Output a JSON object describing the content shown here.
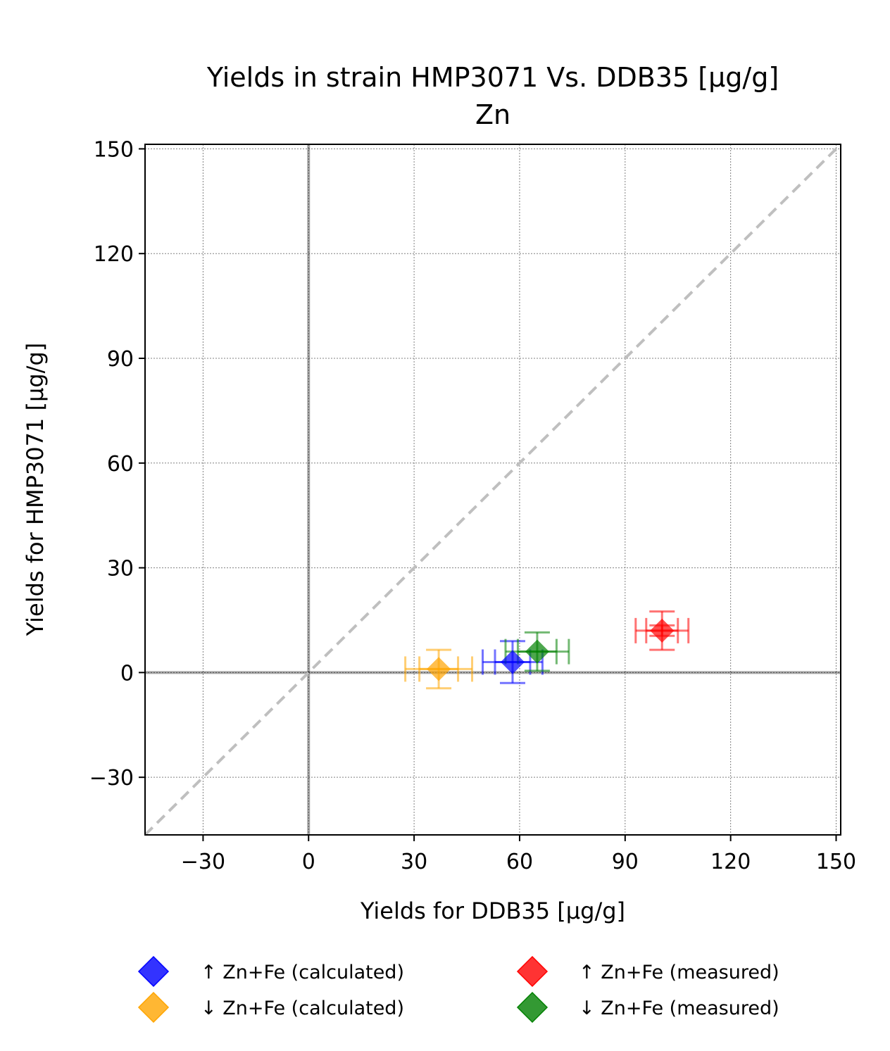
{
  "chart_data": {
    "type": "scatter",
    "title": "Yields in strain HMP3071 Vs. DDB35 [µg/g]",
    "subtitle": "Zn",
    "xlabel": "Yields for DDB35 [µg/g]",
    "ylabel": "Yields for HMP3071 [µg/g]",
    "xlim": [
      -46.5,
      151.3
    ],
    "ylim": [
      -46.5,
      151.3
    ],
    "xticks": [
      -30,
      0,
      30,
      60,
      90,
      120,
      150
    ],
    "yticks": [
      -30,
      0,
      30,
      60,
      90,
      120,
      150
    ],
    "xtick_labels": [
      "−30",
      "0",
      "30",
      "60",
      "90",
      "120",
      "150"
    ],
    "ytick_labels": [
      "−30",
      "0",
      "30",
      "60",
      "90",
      "120",
      "150"
    ],
    "grid": true,
    "reference_lines": {
      "x_zero": true,
      "y_zero": true,
      "identity_diagonal": true
    },
    "legend_position": "bottom",
    "series": [
      {
        "name": "↑ Zn+Fe (calculated)",
        "color": "#0000ff",
        "marker": "diamond",
        "points": [
          {
            "x": 58,
            "y": 3,
            "x_err": 8.5,
            "y_err": 6
          },
          {
            "x": 58,
            "y": 3,
            "x_err": 5,
            "y_err": 0
          }
        ]
      },
      {
        "name": "↓ Zn+Fe (calculated)",
        "color": "#ffa500",
        "marker": "diamond",
        "points": [
          {
            "x": 37,
            "y": 1,
            "x_err": 9.5,
            "y_err": 5.5
          },
          {
            "x": 37,
            "y": 1,
            "x_err": 5.5,
            "y_err": 0
          }
        ]
      },
      {
        "name": "↑ Zn+Fe (measured)",
        "color": "#ff0000",
        "marker": "diamond",
        "points": [
          {
            "x": 100.5,
            "y": 12,
            "x_err": 7.5,
            "y_err": 5.5
          },
          {
            "x": 100.5,
            "y": 12,
            "x_err": 4.5,
            "y_err": 1.5
          }
        ]
      },
      {
        "name": "↓ Zn+Fe (measured)",
        "color": "#008000",
        "marker": "diamond",
        "points": [
          {
            "x": 65,
            "y": 6,
            "x_err": 9,
            "y_err": 5.5
          },
          {
            "x": 65,
            "y": 6,
            "x_err": 5.5,
            "y_err": 0
          }
        ]
      }
    ]
  }
}
